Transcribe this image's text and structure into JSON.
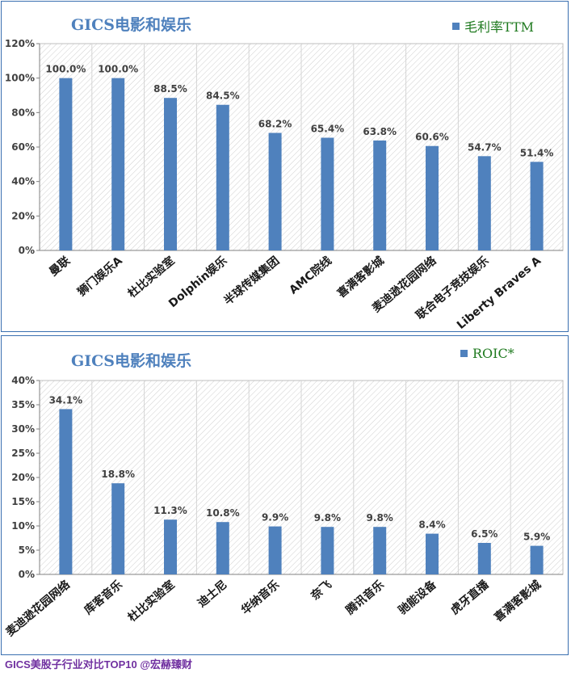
{
  "charts": [
    {
      "title": "GICS电影和娱乐",
      "legend": "毛利率TTM",
      "chart_data": {
        "type": "bar",
        "categories": [
          "曼联",
          "狮门娱乐A",
          "杜比实验室",
          "Dolphin娱乐",
          "半球传媒集团",
          "AMC院线",
          "喜满客影城",
          "麦迪逊花园网络",
          "联合电子竞技娱乐",
          "Liberty Braves A"
        ],
        "series": [
          {
            "name": "毛利率TTM",
            "values": [
              100.0,
              100.0,
              88.5,
              84.5,
              68.2,
              65.4,
              63.8,
              60.6,
              54.7,
              51.4
            ]
          }
        ],
        "data_labels": [
          "100.0%",
          "100.0%",
          "88.5%",
          "84.5%",
          "68.2%",
          "65.4%",
          "63.8%",
          "60.6%",
          "54.7%",
          "51.4%"
        ],
        "y_ticks": [
          "0%",
          "20%",
          "40%",
          "60%",
          "80%",
          "100%",
          "120%"
        ],
        "ylim": [
          0,
          120
        ],
        "grid": "hatched plot area",
        "legend_position": "top-right",
        "bar_color": "#4f81bd"
      }
    },
    {
      "title": "GICS电影和娱乐",
      "legend": "ROIC*",
      "chart_data": {
        "type": "bar",
        "categories": [
          "麦迪逊花园网络",
          "库客音乐",
          "杜比实验室",
          "迪士尼",
          "华纳音乐",
          "奈飞",
          "腾讯音乐",
          "驰能设备",
          "虎牙直播",
          "喜满客影城"
        ],
        "series": [
          {
            "name": "ROIC*",
            "values": [
              34.1,
              18.8,
              11.3,
              10.8,
              9.9,
              9.8,
              9.8,
              8.4,
              6.5,
              5.9
            ]
          }
        ],
        "data_labels": [
          "34.1%",
          "18.8%",
          "11.3%",
          "10.8%",
          "9.9%",
          "9.8%",
          "9.8%",
          "8.4%",
          "6.5%",
          "5.9%"
        ],
        "y_ticks": [
          "0%",
          "5%",
          "10%",
          "15%",
          "20%",
          "25%",
          "30%",
          "35%",
          "40%"
        ],
        "ylim": [
          0,
          40
        ],
        "grid": "hatched plot area",
        "legend_position": "top-right",
        "bar_color": "#4f81bd"
      }
    }
  ],
  "footer": "GICS美股子行业对比TOP10  @宏赫臻财"
}
